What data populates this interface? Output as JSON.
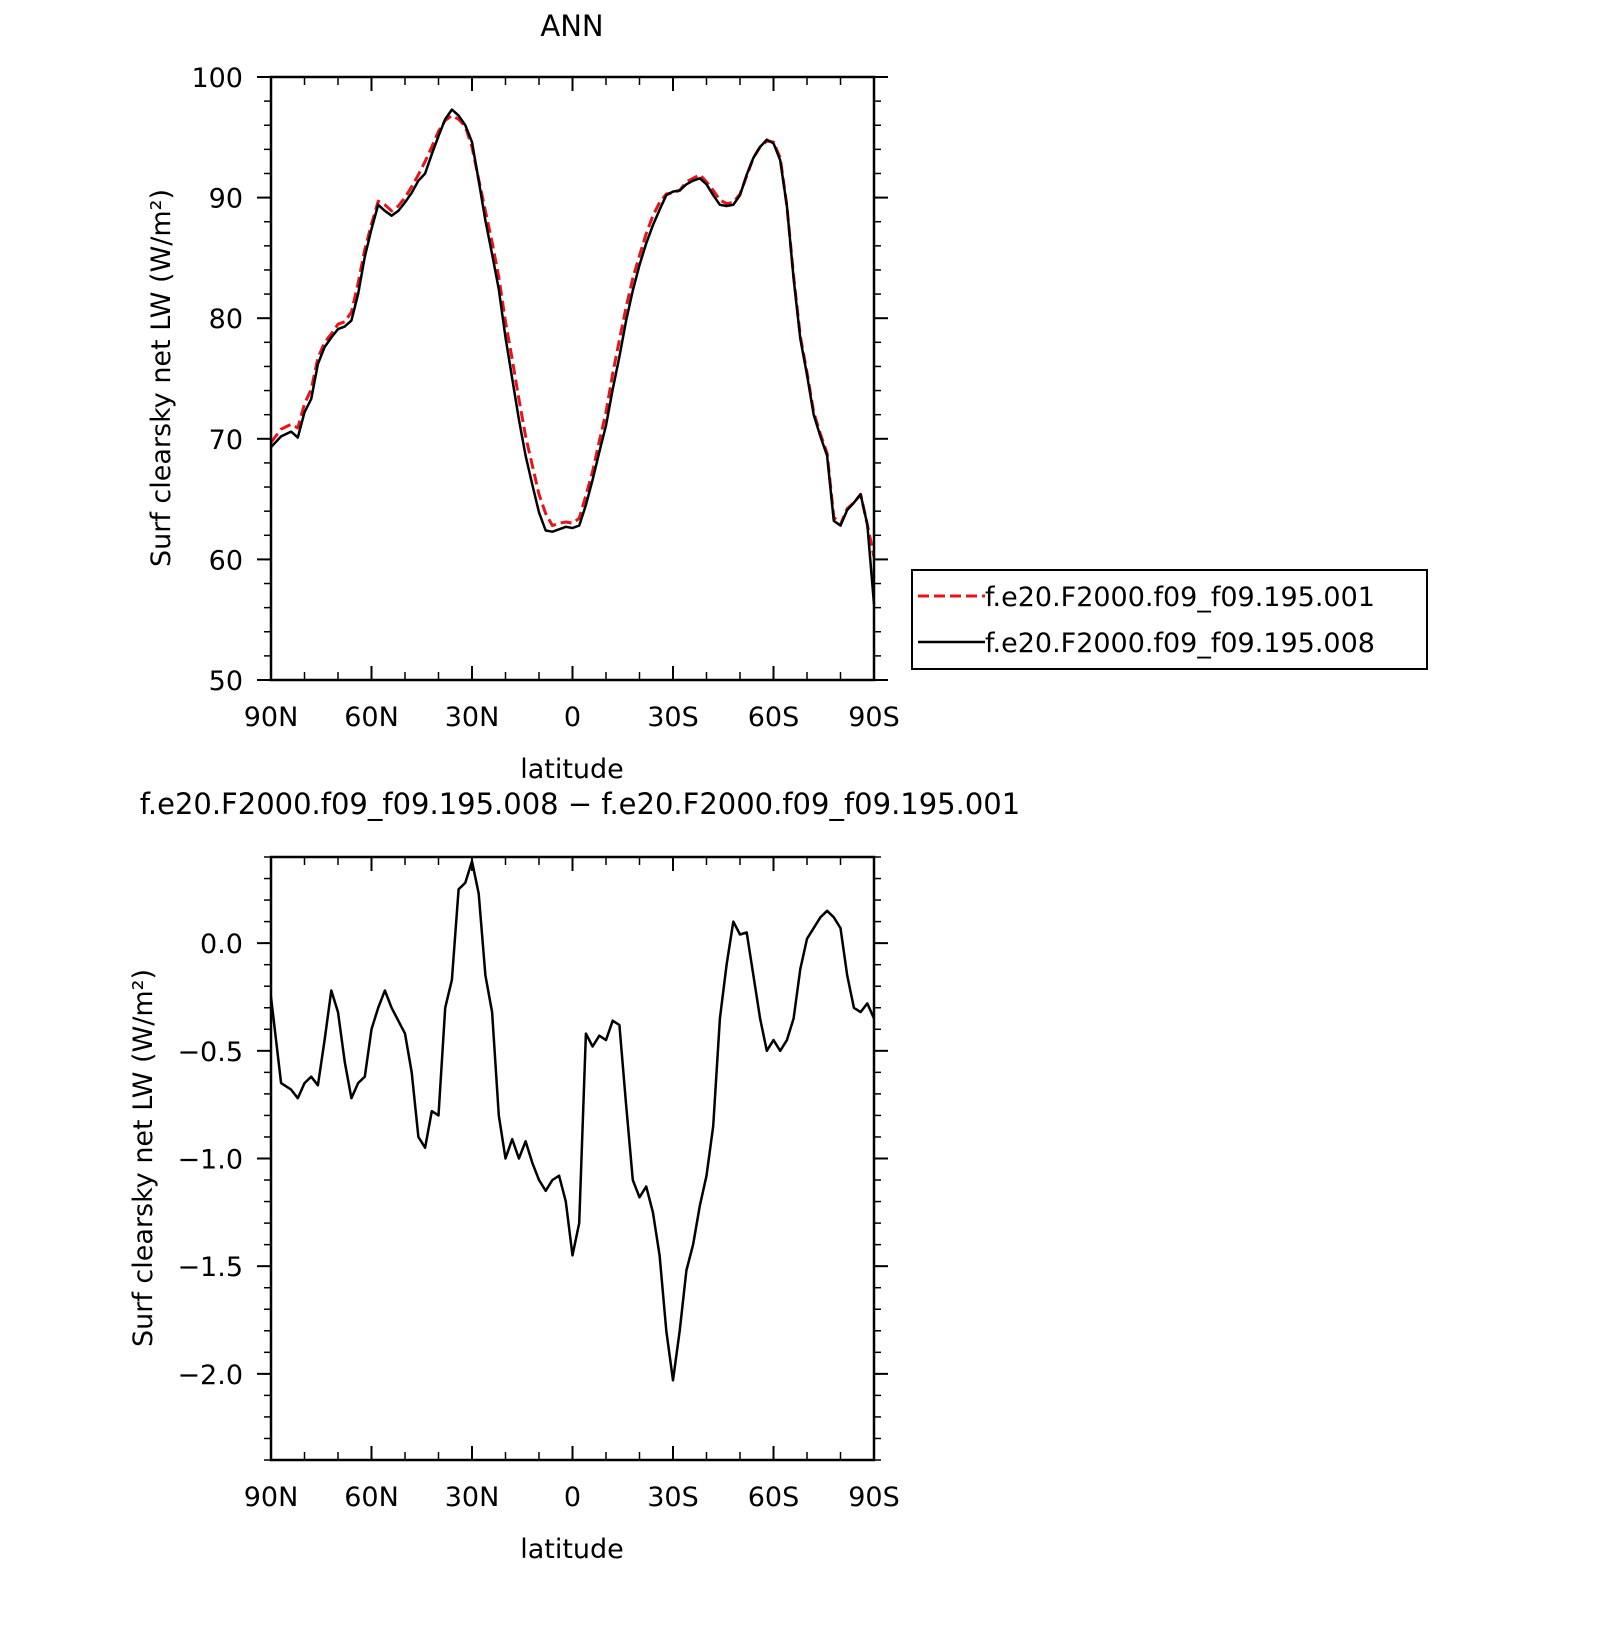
{
  "chart_data": [
    {
      "type": "line",
      "title": "ANN",
      "xlabel": "latitude",
      "ylabel": "Surf clearsky net LW (W/m²)",
      "x_ticks": [
        "90N",
        "60N",
        "30N",
        "0",
        "30S",
        "60S",
        "90S"
      ],
      "x_range": [
        90,
        -90
      ],
      "ylim": [
        50,
        100
      ],
      "y_ticks": [
        "50",
        "60",
        "70",
        "80",
        "90",
        "100"
      ],
      "grid": false,
      "legend_position": "right",
      "x": [
        90,
        87,
        84,
        82,
        80,
        78,
        76,
        74,
        72,
        70,
        68,
        66,
        64,
        62,
        60,
        58,
        56,
        54,
        52,
        50,
        48,
        46,
        44,
        42,
        40,
        38,
        36,
        34,
        32,
        30,
        28,
        26,
        24,
        22,
        20,
        18,
        16,
        14,
        12,
        10,
        8,
        6,
        4,
        2,
        0,
        -2,
        -4,
        -6,
        -8,
        -10,
        -12,
        -14,
        -16,
        -18,
        -20,
        -22,
        -24,
        -26,
        -28,
        -30,
        -32,
        -34,
        -36,
        -38,
        -40,
        -42,
        -44,
        -46,
        -48,
        -50,
        -52,
        -54,
        -56,
        -58,
        -60,
        -62,
        -64,
        -66,
        -68,
        -70,
        -72,
        -74,
        -76,
        -78,
        -80,
        -82,
        -84,
        -86,
        -88,
        -90
      ],
      "series": [
        {
          "name": "f.e20.F2000.f09_f09.195.001",
          "color": "#e8141b",
          "dash": "dashed",
          "values": [
            69.7,
            70.8,
            71.2,
            70.9,
            72.9,
            74.1,
            76.7,
            78.0,
            78.7,
            79.5,
            79.7,
            80.5,
            82.9,
            85.7,
            87.8,
            89.7,
            89.4,
            88.9,
            89.3,
            90.0,
            90.9,
            91.9,
            93.0,
            94.2,
            95.5,
            96.4,
            96.8,
            96.5,
            95.9,
            94.2,
            91.5,
            88.9,
            86.3,
            83.4,
            79.7,
            76.6,
            73.3,
            70.2,
            67.8,
            65.4,
            63.8,
            62.8,
            63.0,
            63.1,
            63.0,
            63.4,
            65.3,
            67.3,
            69.8,
            72.2,
            75.4,
            78.2,
            80.9,
            83.3,
            85.2,
            87.0,
            88.5,
            89.6,
            90.3,
            90.4,
            90.6,
            91.3,
            91.6,
            91.9,
            91.3,
            90.6,
            89.8,
            89.5,
            89.6,
            90.3,
            91.8,
            93.3,
            94.2,
            94.7,
            94.6,
            93.3,
            89.3,
            83.5,
            78.5,
            75.5,
            72.2,
            70.4,
            68.8,
            63.5,
            62.9,
            64.2,
            64.7,
            65.4,
            62.9,
            60.2
          ]
        },
        {
          "name": "f.e20.F2000.f09_f09.195.008",
          "color": "#000000",
          "dash": "solid",
          "values": [
            69.3,
            70.2,
            70.6,
            70.1,
            72.2,
            73.3,
            76.2,
            77.6,
            78.4,
            79.1,
            79.3,
            79.8,
            82.0,
            85.1,
            87.4,
            89.4,
            88.9,
            88.5,
            88.9,
            89.6,
            90.4,
            91.4,
            92.0,
            93.6,
            95.1,
            96.5,
            97.3,
            96.8,
            96.0,
            94.6,
            91.4,
            88.1,
            85.3,
            82.4,
            78.4,
            75.0,
            71.6,
            68.6,
            66.2,
            63.9,
            62.4,
            62.3,
            62.5,
            62.7,
            62.6,
            62.8,
            64.5,
            66.6,
            68.9,
            71.1,
            74.1,
            76.8,
            79.8,
            82.3,
            84.4,
            86.2,
            87.7,
            89.0,
            90.2,
            90.5,
            90.6,
            91.1,
            91.4,
            91.6,
            91.1,
            90.2,
            89.4,
            89.3,
            89.4,
            90.2,
            91.9,
            93.3,
            94.2,
            94.8,
            94.5,
            93.1,
            89.3,
            83.3,
            78.3,
            75.3,
            72.0,
            70.2,
            68.6,
            63.2,
            62.8,
            64.1,
            64.7,
            65.4,
            62.9,
            56.3
          ]
        }
      ]
    },
    {
      "type": "line",
      "title": "f.e20.F2000.f09_f09.195.008 − f.e20.F2000.f09_f09.195.001",
      "xlabel": "latitude",
      "ylabel": "Surf clearsky net LW (W/m²)",
      "x_ticks": [
        "90N",
        "60N",
        "30N",
        "0",
        "30S",
        "60S",
        "90S"
      ],
      "x_range": [
        90,
        -90
      ],
      "ylim": [
        -2.4,
        0.4
      ],
      "y_ticks": [
        "0.0",
        "−0.5",
        "−1.0",
        "−1.5",
        "−2.0"
      ],
      "grid": false,
      "x": [
        90,
        87,
        84,
        82,
        80,
        78,
        76,
        74,
        72,
        70,
        68,
        66,
        64,
        62,
        60,
        58,
        56,
        54,
        52,
        50,
        48,
        46,
        44,
        42,
        40,
        38,
        36,
        34,
        32,
        30,
        28,
        26,
        24,
        22,
        20,
        18,
        16,
        14,
        12,
        10,
        8,
        6,
        4,
        2,
        0,
        -2,
        -4,
        -6,
        -8,
        -10,
        -12,
        -14,
        -16,
        -18,
        -20,
        -22,
        -24,
        -26,
        -28,
        -30,
        -32,
        -34,
        -36,
        -38,
        -40,
        -42,
        -44,
        -46,
        -48,
        -50,
        -52,
        -54,
        -56,
        -58,
        -60,
        -62,
        -64,
        -66,
        -68,
        -70,
        -72,
        -74,
        -76,
        -78,
        -80,
        -82,
        -84,
        -86,
        -88,
        -90
      ],
      "series": [
        {
          "color": "#000000",
          "values": [
            -0.25,
            -0.65,
            -0.68,
            -0.72,
            -0.65,
            -0.62,
            -0.66,
            -0.45,
            -0.22,
            -0.32,
            -0.55,
            -0.72,
            -0.65,
            -0.62,
            -0.4,
            -0.3,
            -0.22,
            -0.3,
            -0.36,
            -0.42,
            -0.6,
            -0.9,
            -0.95,
            -0.78,
            -0.8,
            -0.3,
            -0.17,
            0.25,
            0.28,
            0.38,
            0.23,
            -0.15,
            -0.32,
            -0.8,
            -1.0,
            -0.91,
            -1.0,
            -0.92,
            -1.02,
            -1.1,
            -1.15,
            -1.1,
            -1.08,
            -1.2,
            -1.45,
            -1.3,
            -0.42,
            -0.48,
            -0.43,
            -0.45,
            -0.36,
            -0.38,
            -0.75,
            -1.1,
            -1.18,
            -1.13,
            -1.25,
            -1.45,
            -1.8,
            -2.03,
            -1.8,
            -1.52,
            -1.4,
            -1.22,
            -1.08,
            -0.85,
            -0.35,
            -0.1,
            0.1,
            0.04,
            0.05,
            -0.15,
            -0.35,
            -0.5,
            -0.45,
            -0.5,
            -0.45,
            -0.35,
            -0.12,
            0.02,
            0.07,
            0.12,
            0.15,
            0.12,
            0.07,
            -0.15,
            -0.3,
            -0.32,
            -0.28,
            -0.35
          ]
        }
      ]
    }
  ]
}
